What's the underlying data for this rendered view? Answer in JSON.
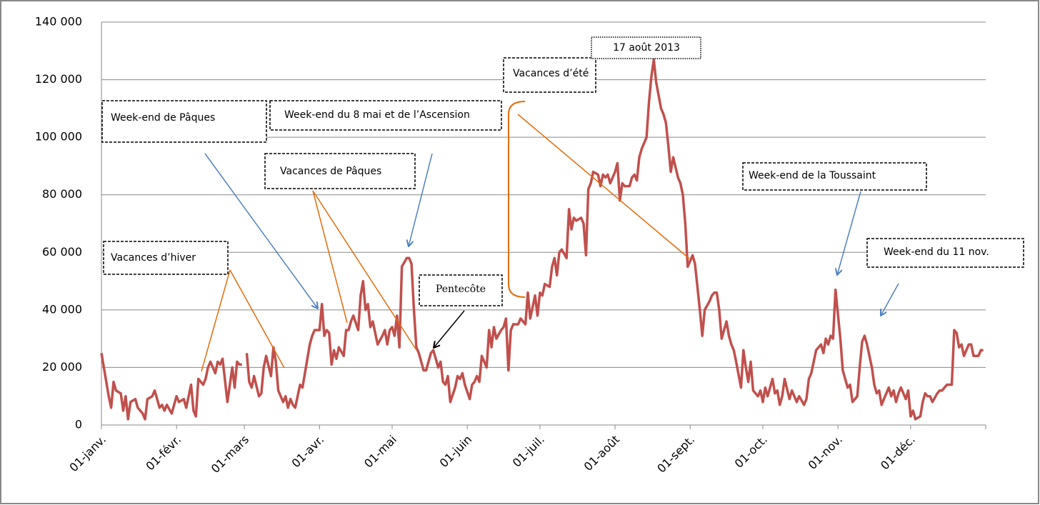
{
  "chart_data": {
    "type": "line",
    "x": [
      0,
      1,
      3,
      4,
      5,
      6,
      8,
      9,
      10,
      11,
      12,
      14,
      15,
      17,
      18,
      19,
      21,
      22,
      24,
      25,
      26,
      27,
      29,
      31,
      32,
      34,
      35,
      37,
      38,
      39,
      40,
      42,
      43,
      44,
      45,
      47,
      48,
      49,
      50,
      52,
      53,
      54,
      55,
      56,
      57,
      58,
      59,
      60,
      61,
      62,
      63,
      65,
      66,
      67,
      68,
      70,
      71,
      72,
      73,
      75,
      76,
      77,
      78,
      79,
      80,
      82,
      83,
      84,
      86,
      87,
      88,
      90,
      91,
      92,
      93,
      94,
      95,
      96,
      97,
      98,
      100,
      101,
      102,
      103,
      104,
      106,
      107,
      108,
      109,
      110,
      111,
      112,
      113,
      114,
      116,
      117,
      118,
      119,
      120,
      121,
      122,
      123,
      124,
      126,
      127,
      128,
      129,
      130,
      131,
      133,
      134,
      135,
      136,
      137,
      139,
      140,
      141,
      142,
      143,
      144,
      146,
      147,
      148,
      149,
      150,
      152,
      153,
      154,
      155,
      156,
      157,
      159,
      160,
      161,
      162,
      163,
      165,
      166,
      167,
      168,
      169,
      170,
      172,
      173,
      174,
      175,
      176,
      177,
      179,
      180,
      181,
      182,
      183,
      185,
      186,
      187,
      188,
      189,
      190,
      192,
      193,
      194,
      195,
      196,
      198,
      199,
      200,
      201,
      202,
      203,
      205,
      206,
      207,
      208,
      209,
      210,
      212,
      213,
      214,
      215,
      216,
      218,
      219,
      220,
      221,
      222,
      223,
      225,
      226,
      227,
      228,
      229,
      231,
      232,
      233,
      234,
      235,
      236,
      238,
      239,
      240,
      241,
      242,
      244,
      245,
      246,
      247,
      248,
      249,
      251,
      252,
      253,
      254,
      255,
      256,
      258,
      259,
      260,
      261,
      262,
      264,
      265,
      266,
      267,
      268,
      269,
      271,
      272,
      273,
      274,
      275,
      277,
      278,
      279,
      280,
      281,
      282,
      284,
      285,
      286,
      287,
      288,
      290,
      291,
      292,
      293,
      294,
      295,
      297,
      298,
      299,
      300,
      301,
      302,
      303,
      305,
      306,
      307,
      308,
      309,
      310,
      312,
      313,
      314,
      315,
      316,
      318,
      319,
      320,
      321,
      322,
      323,
      325,
      326,
      327,
      328,
      329,
      330,
      332,
      333,
      334,
      335,
      336,
      338,
      339,
      340,
      341,
      342,
      343,
      345,
      346,
      347,
      348,
      349,
      351,
      352,
      353,
      354,
      355,
      356,
      358,
      359,
      360,
      361,
      362,
      363,
      364
    ],
    "values": [
      25000,
      20000,
      10000,
      6000,
      15000,
      12000,
      11000,
      5000,
      10000,
      2000,
      8000,
      9000,
      6000,
      4000,
      2000,
      9000,
      10000,
      12000,
      6000,
      7000,
      5000,
      7000,
      4000,
      10000,
      8000,
      9000,
      6000,
      14000,
      5000,
      3000,
      16000,
      14000,
      16000,
      20000,
      22000,
      18000,
      22000,
      21000,
      23000,
      8000,
      14000,
      20000,
      13000,
      22000,
      21000,
      21000,
      null,
      25000,
      15000,
      13000,
      17000,
      10000,
      11000,
      20000,
      24000,
      17000,
      27000,
      22000,
      12000,
      8000,
      10000,
      6000,
      9000,
      7000,
      6000,
      14000,
      13000,
      18000,
      28000,
      31000,
      33000,
      33000,
      42000,
      31000,
      33000,
      32000,
      21000,
      26000,
      23000,
      27000,
      24000,
      33000,
      33000,
      36000,
      38000,
      33000,
      45000,
      50000,
      40000,
      42000,
      34000,
      36000,
      32000,
      28000,
      31000,
      33000,
      28000,
      33000,
      34000,
      31000,
      38000,
      27000,
      55000,
      58000,
      58000,
      56000,
      40000,
      27000,
      25000,
      19000,
      19000,
      22000,
      25000,
      26000,
      20000,
      22000,
      15000,
      14000,
      17000,
      8000,
      13000,
      17000,
      16000,
      18000,
      14000,
      9000,
      14000,
      15000,
      17000,
      15000,
      24000,
      20000,
      33000,
      27000,
      34000,
      30000,
      33000,
      34000,
      37000,
      19000,
      33000,
      35000,
      35000,
      37000,
      36000,
      35000,
      46000,
      37000,
      45000,
      38000,
      46000,
      45000,
      49000,
      48000,
      55000,
      58000,
      52000,
      60000,
      61000,
      58000,
      75000,
      68000,
      72000,
      71000,
      72000,
      70000,
      59000,
      82000,
      84000,
      88000,
      87000,
      83000,
      87000,
      86000,
      87000,
      84000,
      88000,
      91000,
      78000,
      84000,
      83000,
      83000,
      86000,
      87000,
      85000,
      93000,
      96000,
      100000,
      112000,
      121000,
      127000,
      119000,
      110000,
      108000,
      105000,
      97000,
      88000,
      93000,
      86000,
      84000,
      80000,
      70000,
      55000,
      59000,
      56000,
      48000,
      40000,
      31000,
      40000,
      43000,
      45000,
      46000,
      46000,
      40000,
      30000,
      36000,
      31000,
      28000,
      26000,
      22000,
      13000,
      26000,
      20000,
      15000,
      22000,
      12000,
      10000,
      12000,
      8000,
      13000,
      10000,
      16000,
      11000,
      12000,
      7000,
      10000,
      16000,
      9000,
      12000,
      10000,
      8000,
      10000,
      7000,
      9000,
      16000,
      18000,
      22000,
      26000,
      28000,
      25000,
      30000,
      28000,
      31000,
      30000,
      47000,
      30000,
      19000,
      16000,
      13000,
      14000,
      8000,
      10000,
      20000,
      29000,
      31000,
      28000,
      20000,
      14000,
      11000,
      12000,
      7000,
      9000,
      13000,
      10000,
      12000,
      8000,
      11000,
      13000,
      9000,
      12000,
      3000,
      5000,
      2000,
      3000,
      8000,
      11000,
      10000,
      10000,
      8000,
      11000,
      12000,
      12000,
      13000,
      14000,
      14000,
      33000,
      32000,
      27000,
      28000,
      24000,
      28000,
      28000,
      24000,
      24000,
      24000,
      26000,
      26000
    ],
    "color": "#c0504d",
    "xlim": [
      0,
      365
    ],
    "xticks": [
      {
        "value": 0,
        "label": "01-janv."
      },
      {
        "value": 31,
        "label": "01-févr."
      },
      {
        "value": 59,
        "label": "01-mars"
      },
      {
        "value": 90,
        "label": "01-avr."
      },
      {
        "value": 120,
        "label": "01-mai"
      },
      {
        "value": 151,
        "label": "01-juin"
      },
      {
        "value": 181,
        "label": "01-juil."
      },
      {
        "value": 212,
        "label": "01-août"
      },
      {
        "value": 243,
        "label": "01-sept."
      },
      {
        "value": 273,
        "label": "01-oct."
      },
      {
        "value": 304,
        "label": "01-nov."
      },
      {
        "value": 334,
        "label": "01-déc."
      }
    ],
    "ylim": [
      0,
      140000
    ],
    "yticks": [
      0,
      {
        "value": 20000,
        "label": "20 000"
      },
      {
        "value": 40000,
        "label": "40 000"
      },
      {
        "value": 60000,
        "label": "60 000"
      },
      {
        "value": 80000,
        "label": "80 000"
      },
      {
        "value": 100000,
        "label": "100 000"
      },
      {
        "value": 120000,
        "label": "120 000"
      },
      {
        "value": 140000,
        "label": "140 000"
      }
    ],
    "grid": true,
    "annotations": [
      {
        "text": "Week-end de Pâques"
      },
      {
        "text": "Week-end du 8 mai et de l’Ascension"
      },
      {
        "text": "Vacances de Pâques"
      },
      {
        "text": "Vacances d’été"
      },
      {
        "text": "17 août 2013"
      },
      {
        "text": "Vacances d’hiver"
      },
      {
        "text": "Pentecôte"
      },
      {
        "text": "Week-end de la Toussaint"
      },
      {
        "text": "Week-end du 11 nov."
      }
    ]
  }
}
